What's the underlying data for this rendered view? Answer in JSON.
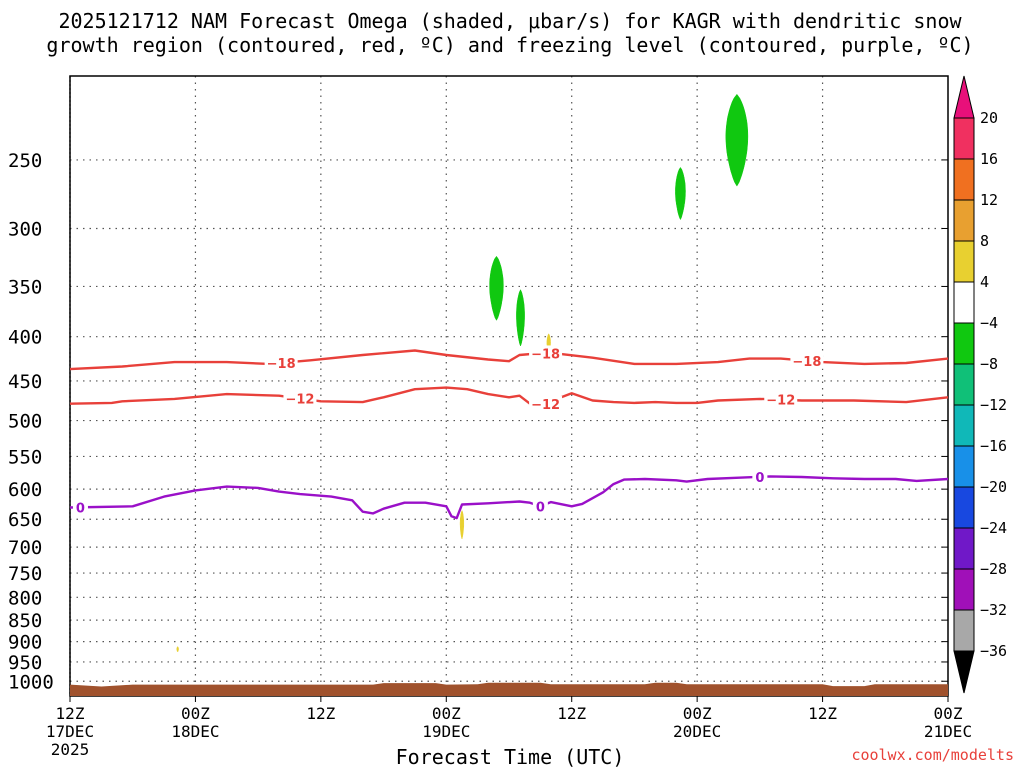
{
  "chart_data": {
    "type": "heatmap",
    "title_line1": "2025121712 NAM Forecast Omega (shaded, μbar/s) for KAGR with dendritic snow",
    "title_line2": "growth region (contoured, red, ºC) and freezing level (contoured, purple, ºC)",
    "xlabel": "Forecast Time (UTC)",
    "credit": "coolwx.com/modelts",
    "y_axis": {
      "scale": "log-pressure",
      "range_hpa": [
        1040,
        200
      ],
      "ticks": [
        250,
        300,
        350,
        400,
        450,
        500,
        550,
        600,
        650,
        700,
        750,
        800,
        850,
        900,
        950,
        1000
      ]
    },
    "x_axis": {
      "range_hours": [
        0,
        84
      ],
      "ticks": [
        {
          "h": 0,
          "l1": "12Z",
          "l2": "17DEC",
          "l3": "2025"
        },
        {
          "h": 12,
          "l1": "00Z",
          "l2": "18DEC",
          "l3": ""
        },
        {
          "h": 24,
          "l1": "12Z",
          "l2": "",
          "l3": ""
        },
        {
          "h": 36,
          "l1": "00Z",
          "l2": "19DEC",
          "l3": ""
        },
        {
          "h": 48,
          "l1": "12Z",
          "l2": "",
          "l3": ""
        },
        {
          "h": 60,
          "l1": "00Z",
          "l2": "20DEC",
          "l3": ""
        },
        {
          "h": 72,
          "l1": "12Z",
          "l2": "",
          "l3": ""
        },
        {
          "h": 84,
          "l1": "00Z",
          "l2": "21DEC",
          "l3": ""
        }
      ]
    },
    "colorbar": {
      "labels": [
        "20",
        "16",
        "12",
        "8",
        "4",
        "−4",
        "−8",
        "−12",
        "−16",
        "−20",
        "−24",
        "−28",
        "−32",
        "−36"
      ],
      "colors": [
        "#f03060",
        "#f07020",
        "#e8a030",
        "#e8d030",
        "#ffffff",
        "#10c810",
        "#10c078",
        "#10b8b8",
        "#1890e8",
        "#1848e0",
        "#7018c8",
        "#a010b8",
        "#a8a8a8"
      ],
      "top_arrow": "#e8107a",
      "bottom_arrow": "#000000"
    },
    "contours": [
      {
        "name": "dgz-minus-18",
        "color": "#e8403a",
        "label": "−18",
        "label_hours": [
          20.2,
          45.5,
          70.5
        ],
        "points": [
          [
            0,
            436
          ],
          [
            5,
            433
          ],
          [
            10,
            428
          ],
          [
            12,
            428
          ],
          [
            15,
            428
          ],
          [
            19,
            430
          ],
          [
            23,
            426
          ],
          [
            28,
            420
          ],
          [
            33,
            415
          ],
          [
            36,
            420
          ],
          [
            40,
            425
          ],
          [
            42,
            427
          ],
          [
            43,
            420
          ],
          [
            45,
            418
          ],
          [
            47,
            419
          ],
          [
            50,
            423
          ],
          [
            54,
            430
          ],
          [
            58,
            430
          ],
          [
            62,
            428
          ],
          [
            65,
            424
          ],
          [
            68,
            424
          ],
          [
            72,
            428
          ],
          [
            76,
            430
          ],
          [
            80,
            429
          ],
          [
            84,
            424
          ]
        ]
      },
      {
        "name": "dgz-minus-12",
        "color": "#e8403a",
        "label": "−12",
        "label_hours": [
          22,
          45.5,
          68
        ],
        "points": [
          [
            0,
            478
          ],
          [
            4,
            477
          ],
          [
            5,
            475
          ],
          [
            10,
            472
          ],
          [
            15,
            466
          ],
          [
            20,
            468
          ],
          [
            24,
            475
          ],
          [
            28,
            476
          ],
          [
            30,
            470
          ],
          [
            33,
            460
          ],
          [
            36,
            458
          ],
          [
            38,
            460
          ],
          [
            40,
            466
          ],
          [
            42,
            470
          ],
          [
            43,
            468
          ],
          [
            44,
            478
          ],
          [
            45,
            482
          ],
          [
            46,
            475
          ],
          [
            48,
            465
          ],
          [
            50,
            474
          ],
          [
            52,
            476
          ],
          [
            54,
            477
          ],
          [
            56,
            476
          ],
          [
            58,
            477
          ],
          [
            60,
            477
          ],
          [
            62,
            474
          ],
          [
            66,
            472
          ],
          [
            70,
            474
          ],
          [
            75,
            474
          ],
          [
            80,
            476
          ],
          [
            84,
            470
          ]
        ]
      },
      {
        "name": "freezing-level-0c",
        "color": "#9a10c8",
        "label": "0",
        "label_hours": [
          1,
          45,
          66
        ],
        "points": [
          [
            0,
            630
          ],
          [
            6,
            628
          ],
          [
            9,
            612
          ],
          [
            12,
            602
          ],
          [
            15,
            596
          ],
          [
            18,
            598
          ],
          [
            20,
            604
          ],
          [
            22,
            608
          ],
          [
            25,
            612
          ],
          [
            27,
            618
          ],
          [
            28,
            637
          ],
          [
            29,
            640
          ],
          [
            30,
            632
          ],
          [
            32,
            622
          ],
          [
            34,
            622
          ],
          [
            36,
            628
          ],
          [
            36.5,
            645
          ],
          [
            37,
            648
          ],
          [
            37.5,
            625
          ],
          [
            40,
            623
          ],
          [
            43,
            620
          ],
          [
            44,
            622
          ],
          [
            45,
            628
          ],
          [
            46,
            621
          ],
          [
            48,
            628
          ],
          [
            49,
            624
          ],
          [
            51,
            605
          ],
          [
            52,
            592
          ],
          [
            53,
            585
          ],
          [
            55,
            584
          ],
          [
            58,
            586
          ],
          [
            59,
            588
          ],
          [
            61,
            584
          ],
          [
            64,
            582
          ],
          [
            67,
            580
          ],
          [
            70,
            581
          ],
          [
            73,
            583
          ],
          [
            76,
            584
          ],
          [
            79,
            584
          ],
          [
            81,
            587
          ],
          [
            84,
            584
          ]
        ]
      }
    ],
    "omega_blobs": [
      {
        "name": "blob-green-a",
        "color": "#10c810",
        "value_class": "−4 to −8",
        "h_center": 63.8,
        "h_halfwidth": 1.2,
        "p_top": 210,
        "p_bottom": 268
      },
      {
        "name": "blob-green-b",
        "color": "#10c810",
        "value_class": "−4 to −8",
        "h_center": 58.4,
        "h_halfwidth": 0.55,
        "p_top": 255,
        "p_bottom": 293
      },
      {
        "name": "blob-green-c",
        "color": "#10c810",
        "value_class": "−4 to −8",
        "h_center": 40.8,
        "h_halfwidth": 0.75,
        "p_top": 323,
        "p_bottom": 383
      },
      {
        "name": "blob-green-d",
        "color": "#10c810",
        "value_class": "−4 to −8",
        "h_center": 43.1,
        "h_halfwidth": 0.45,
        "p_top": 353,
        "p_bottom": 410
      },
      {
        "name": "blob-yellow-a",
        "color": "#e8d030",
        "value_class": "4 to 8",
        "h_center": 45.8,
        "h_halfwidth": 0.2,
        "p_top": 397,
        "p_bottom": 418
      },
      {
        "name": "blob-yellow-b",
        "color": "#e8d030",
        "value_class": "4 to 8",
        "h_center": 37.5,
        "h_halfwidth": 0.2,
        "p_top": 635,
        "p_bottom": 685
      },
      {
        "name": "blob-yellow-c",
        "color": "#e8d030",
        "value_class": "4 to 8",
        "h_center": 10.3,
        "h_halfwidth": 0.1,
        "p_top": 912,
        "p_bottom": 925
      }
    ],
    "terrain": {
      "name": "ground-terrain",
      "color": "#a0522d",
      "points": [
        [
          0,
          1009
        ],
        [
          3,
          1014
        ],
        [
          6,
          1009
        ],
        [
          29,
          1009
        ],
        [
          30,
          1005
        ],
        [
          35,
          1005
        ],
        [
          36,
          1009
        ],
        [
          39,
          1008
        ],
        [
          40,
          1004
        ],
        [
          45,
          1004
        ],
        [
          46,
          1008
        ],
        [
          55,
          1008
        ],
        [
          56,
          1004
        ],
        [
          58,
          1004
        ],
        [
          59,
          1008
        ],
        [
          72,
          1008
        ],
        [
          73,
          1013
        ],
        [
          76,
          1013
        ],
        [
          77,
          1008
        ],
        [
          84,
          1008
        ]
      ]
    }
  }
}
